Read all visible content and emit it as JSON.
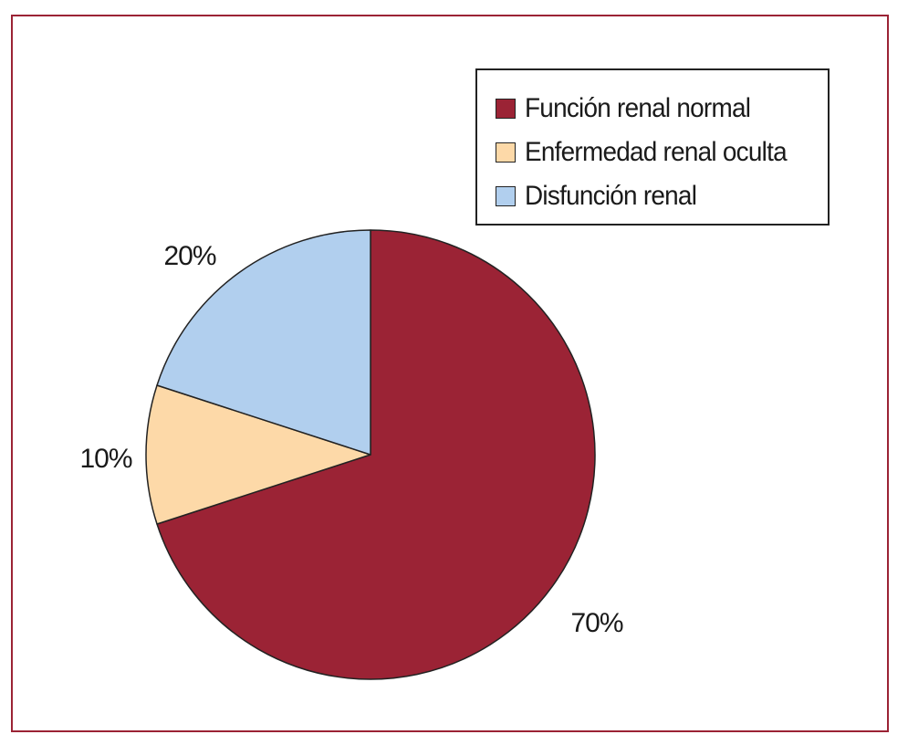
{
  "chart_data": {
    "type": "pie",
    "title": "",
    "start_angle_deg": 0,
    "direction": "clockwise",
    "slices": [
      {
        "name": "Función renal normal",
        "value": 70,
        "label": "70%",
        "color": "#9b2335"
      },
      {
        "name": "Enfermedad renal oculta",
        "value": 10,
        "label": "10%",
        "color": "#fdd9a8"
      },
      {
        "name": "Disfunción renal",
        "value": 20,
        "label": "20%",
        "color": "#b1cfee"
      }
    ],
    "legend": {
      "position": "top-right",
      "entries": [
        "Función renal normal",
        "Enfermedad renal oculta",
        "Disfunción renal"
      ]
    }
  },
  "colors": {
    "border": "#9b2335",
    "outline": "#222222"
  }
}
